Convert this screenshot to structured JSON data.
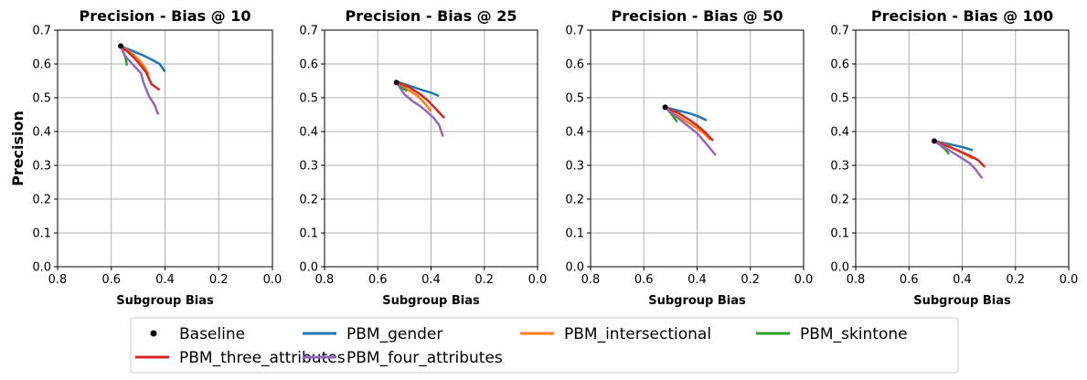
{
  "chart_data": [
    {
      "type": "line",
      "title": "Precision - Bias @ 10",
      "xlabel": "Subgroup Bias",
      "ylabel": "Precision",
      "xlim": [
        0.8,
        0.0
      ],
      "ylim": [
        0.0,
        0.7
      ],
      "xticks": [
        "0.8",
        "0.6",
        "0.4",
        "0.2",
        "0.0"
      ],
      "yticks": [
        "0.0",
        "0.1",
        "0.2",
        "0.3",
        "0.4",
        "0.5",
        "0.6",
        "0.7"
      ],
      "grid": true,
      "baseline": {
        "x": 0.565,
        "y": 0.653
      },
      "series": [
        {
          "name": "PBM_gender",
          "x": [
            0.565,
            0.52,
            0.48,
            0.45,
            0.42,
            0.4
          ],
          "y": [
            0.653,
            0.638,
            0.625,
            0.613,
            0.6,
            0.577
          ]
        },
        {
          "name": "PBM_intersectional",
          "x": [
            0.565,
            0.53,
            0.5,
            0.48,
            0.46
          ],
          "y": [
            0.653,
            0.635,
            0.615,
            0.595,
            0.567
          ]
        },
        {
          "name": "PBM_skintone",
          "x": [
            0.565,
            0.555,
            0.545,
            0.542
          ],
          "y": [
            0.653,
            0.635,
            0.612,
            0.595
          ]
        },
        {
          "name": "PBM_three_attributes",
          "x": [
            0.565,
            0.53,
            0.5,
            0.47,
            0.45,
            0.42
          ],
          "y": [
            0.653,
            0.63,
            0.605,
            0.575,
            0.54,
            0.523
          ]
        },
        {
          "name": "PBM_four_attributes",
          "x": [
            0.565,
            0.55,
            0.52,
            0.49,
            0.48,
            0.46,
            0.44,
            0.425
          ],
          "y": [
            0.653,
            0.625,
            0.598,
            0.573,
            0.545,
            0.505,
            0.48,
            0.45
          ]
        }
      ]
    },
    {
      "type": "line",
      "title": "Precision - Bias @ 25",
      "xlabel": "Subgroup Bias",
      "ylabel": "",
      "xlim": [
        0.8,
        0.0
      ],
      "ylim": [
        0.0,
        0.7
      ],
      "xticks": [
        "0.8",
        "0.6",
        "0.4",
        "0.2",
        "0.0"
      ],
      "yticks": [
        "0.0",
        "0.1",
        "0.2",
        "0.3",
        "0.4",
        "0.5",
        "0.6",
        "0.7"
      ],
      "grid": true,
      "baseline": {
        "x": 0.53,
        "y": 0.545
      },
      "series": [
        {
          "name": "PBM_gender",
          "x": [
            0.53,
            0.48,
            0.43,
            0.4,
            0.37
          ],
          "y": [
            0.548,
            0.535,
            0.522,
            0.515,
            0.505
          ]
        },
        {
          "name": "PBM_intersectional",
          "x": [
            0.53,
            0.49,
            0.45,
            0.42,
            0.4
          ],
          "y": [
            0.548,
            0.525,
            0.505,
            0.48,
            0.46
          ]
        },
        {
          "name": "PBM_skintone",
          "x": [
            0.53,
            0.51,
            0.49
          ],
          "y": [
            0.545,
            0.53,
            0.52
          ]
        },
        {
          "name": "PBM_three_attributes",
          "x": [
            0.53,
            0.48,
            0.44,
            0.41,
            0.38,
            0.35
          ],
          "y": [
            0.548,
            0.53,
            0.51,
            0.49,
            0.465,
            0.44
          ]
        },
        {
          "name": "PBM_four_attributes",
          "x": [
            0.53,
            0.5,
            0.47,
            0.44,
            0.41,
            0.39,
            0.37,
            0.355
          ],
          "y": [
            0.545,
            0.51,
            0.49,
            0.475,
            0.455,
            0.44,
            0.42,
            0.385
          ]
        }
      ]
    },
    {
      "type": "line",
      "title": "Precision - Bias @ 50",
      "xlabel": "Subgroup Bias",
      "ylabel": "",
      "xlim": [
        0.8,
        0.0
      ],
      "ylim": [
        0.0,
        0.7
      ],
      "xticks": [
        "0.8",
        "0.6",
        "0.4",
        "0.2",
        "0.0"
      ],
      "yticks": [
        "0.0",
        "0.1",
        "0.2",
        "0.3",
        "0.4",
        "0.5",
        "0.6",
        "0.7"
      ],
      "grid": true,
      "baseline": {
        "x": 0.52,
        "y": 0.472
      },
      "series": [
        {
          "name": "PBM_gender",
          "x": [
            0.52,
            0.47,
            0.42,
            0.39,
            0.365
          ],
          "y": [
            0.472,
            0.462,
            0.452,
            0.443,
            0.433
          ]
        },
        {
          "name": "PBM_intersectional",
          "x": [
            0.52,
            0.48,
            0.44,
            0.4,
            0.375,
            0.35
          ],
          "y": [
            0.472,
            0.45,
            0.43,
            0.41,
            0.395,
            0.375
          ]
        },
        {
          "name": "PBM_skintone",
          "x": [
            0.52,
            0.5,
            0.485,
            0.475
          ],
          "y": [
            0.472,
            0.455,
            0.44,
            0.428
          ]
        },
        {
          "name": "PBM_three_attributes",
          "x": [
            0.52,
            0.47,
            0.43,
            0.4,
            0.37,
            0.34
          ],
          "y": [
            0.472,
            0.455,
            0.435,
            0.418,
            0.398,
            0.373
          ]
        },
        {
          "name": "PBM_four_attributes",
          "x": [
            0.52,
            0.48,
            0.44,
            0.4,
            0.37,
            0.33
          ],
          "y": [
            0.472,
            0.445,
            0.42,
            0.395,
            0.368,
            0.33
          ]
        }
      ]
    },
    {
      "type": "line",
      "title": "Precision - Bias @ 100",
      "xlabel": "Subgroup Bias",
      "ylabel": "",
      "xlim": [
        0.8,
        0.0
      ],
      "ylim": [
        0.0,
        0.7
      ],
      "xticks": [
        "0.8",
        "0.6",
        "0.4",
        "0.2",
        "0.0"
      ],
      "yticks": [
        "0.0",
        "0.1",
        "0.2",
        "0.3",
        "0.4",
        "0.5",
        "0.6",
        "0.7"
      ],
      "grid": true,
      "baseline": {
        "x": 0.505,
        "y": 0.372
      },
      "series": [
        {
          "name": "PBM_gender",
          "x": [
            0.505,
            0.45,
            0.4,
            0.36
          ],
          "y": [
            0.372,
            0.363,
            0.354,
            0.345
          ]
        },
        {
          "name": "PBM_intersectional",
          "x": [
            0.505,
            0.46,
            0.42,
            0.39,
            0.36
          ],
          "y": [
            0.372,
            0.36,
            0.345,
            0.333,
            0.32
          ]
        },
        {
          "name": "PBM_skintone",
          "x": [
            0.505,
            0.48,
            0.46,
            0.45
          ],
          "y": [
            0.372,
            0.358,
            0.345,
            0.333
          ]
        },
        {
          "name": "PBM_three_attributes",
          "x": [
            0.505,
            0.46,
            0.41,
            0.37,
            0.34,
            0.315
          ],
          "y": [
            0.372,
            0.358,
            0.342,
            0.328,
            0.315,
            0.295
          ]
        },
        {
          "name": "PBM_four_attributes",
          "x": [
            0.505,
            0.47,
            0.43,
            0.4,
            0.37,
            0.35,
            0.325
          ],
          "y": [
            0.372,
            0.355,
            0.335,
            0.32,
            0.305,
            0.288,
            0.262
          ]
        }
      ]
    }
  ],
  "legend": {
    "placement": "bottom-center",
    "items": [
      {
        "label": "Baseline",
        "kind": "marker"
      },
      {
        "label": "PBM_gender",
        "kind": "line"
      },
      {
        "label": "PBM_intersectional",
        "kind": "line"
      },
      {
        "label": "PBM_skintone",
        "kind": "line"
      },
      {
        "label": "PBM_three_attributes",
        "kind": "line"
      },
      {
        "label": "PBM_four_attributes",
        "kind": "line"
      }
    ]
  },
  "colors": {
    "Baseline": "#000000",
    "PBM_gender": "#1f77b4",
    "PBM_intersectional": "#ff7f0e",
    "PBM_skintone": "#2ca02c",
    "PBM_three_attributes": "#d62728",
    "PBM_four_attributes": "#9467bd"
  }
}
